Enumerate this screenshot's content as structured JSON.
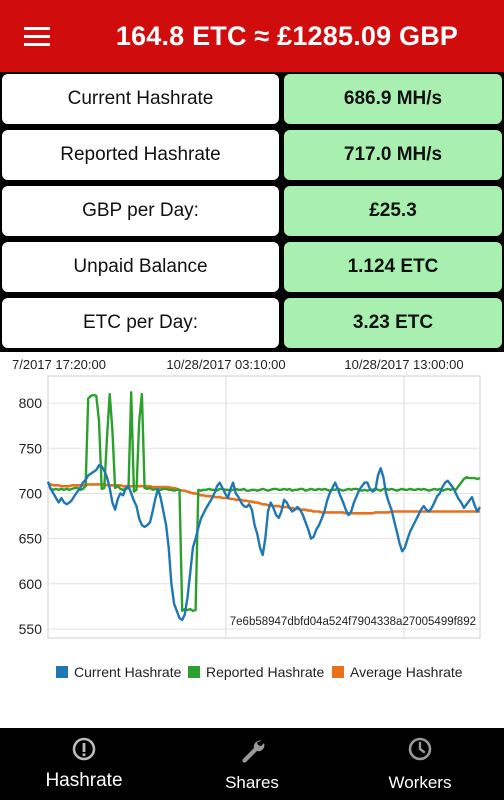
{
  "header": {
    "title": "164.8 ETC ≈ £1285.09 GBP"
  },
  "stats": [
    {
      "label": "Current Hashrate",
      "value": "686.9 MH/s"
    },
    {
      "label": "Reported Hashrate",
      "value": "717.0 MH/s"
    },
    {
      "label": "GBP per Day:",
      "value": "£25.3"
    },
    {
      "label": "Unpaid Balance",
      "value": "1.124 ETC"
    },
    {
      "label": "ETC per Day:",
      "value": "3.23 ETC"
    }
  ],
  "chart_data": {
    "type": "line",
    "x_tick_labels": [
      "7/2017 17:20:00",
      "10/28/2017 03:10:00",
      "10/28/2017 13:00:00"
    ],
    "ylim": [
      540,
      830
    ],
    "y_ticks": [
      550,
      600,
      650,
      700,
      750,
      800
    ],
    "grid": true,
    "legend_position": "bottom",
    "description_text": "7e6b58947dbfd04a524f7904338a27005499f892",
    "series": [
      {
        "name": "Current Hashrate",
        "color": "#1f77b4",
        "values": [
          713,
          705,
          700,
          695,
          690,
          695,
          690,
          688,
          690,
          693,
          698,
          702,
          706,
          712,
          715,
          720,
          722,
          724,
          726,
          731,
          730,
          725,
          718,
          706,
          690,
          682,
          694,
          700,
          698,
          706,
          708,
          700,
          692,
          686,
          672,
          665,
          663,
          665,
          668,
          680,
          694,
          705,
          695,
          680,
          665,
          640,
          600,
          578,
          570,
          562,
          560,
          566,
          585,
          612,
          640,
          650,
          662,
          672,
          678,
          684,
          689,
          694,
          700,
          708,
          712,
          706,
          700,
          695,
          705,
          712,
          700,
          696,
          690,
          686,
          685,
          688,
          682,
          665,
          655,
          640,
          632,
          650,
          680,
          690,
          684,
          676,
          673,
          680,
          693,
          690,
          684,
          680,
          682,
          685,
          682,
          676,
          668,
          660,
          650,
          652,
          660,
          665,
          672,
          680,
          692,
          700,
          706,
          712,
          705,
          697,
          690,
          682,
          676,
          680,
          690,
          697,
          704,
          708,
          712,
          712,
          705,
          702,
          704,
          720,
          728,
          718,
          700,
          690,
          682,
          670,
          658,
          645,
          636,
          640,
          650,
          658,
          664,
          670,
          676,
          682,
          686,
          682,
          680,
          684,
          690,
          697,
          700,
          707,
          712,
          714,
          710,
          706,
          700,
          694,
          690,
          684,
          688,
          692,
          696,
          687,
          680,
          685
        ]
      },
      {
        "name": "Reported Hashrate",
        "color": "#2ca02c",
        "values": [
          713,
          705,
          704,
          705,
          704,
          705,
          704,
          705,
          704,
          705,
          706,
          706,
          704,
          705,
          708,
          805,
          808,
          809,
          808,
          780,
          705,
          706,
          762,
          810,
          770,
          706,
          708,
          705,
          704,
          705,
          706,
          812,
          702,
          704,
          780,
          810,
          706,
          705,
          706,
          704,
          705,
          704,
          704,
          705,
          705,
          704,
          704,
          703,
          704,
          704,
          570,
          572,
          571,
          572,
          570,
          571,
          704,
          703,
          704,
          704,
          705,
          704,
          704,
          703,
          705,
          705,
          704,
          704,
          703,
          704,
          705,
          704,
          704,
          705,
          703,
          703,
          704,
          704,
          703,
          704,
          705,
          704,
          703,
          704,
          705,
          705,
          704,
          704,
          705,
          704,
          705,
          703,
          704,
          704,
          705,
          705,
          703,
          704,
          705,
          704,
          704,
          705,
          704,
          705,
          704,
          703,
          704,
          704,
          705,
          704,
          703,
          704,
          705,
          704,
          705,
          705,
          704,
          703,
          704,
          703,
          704,
          704,
          705,
          704,
          703,
          705,
          705,
          704,
          705,
          704,
          703,
          704,
          705,
          704,
          704,
          705,
          704,
          704,
          705,
          704,
          705,
          704,
          703,
          704,
          705,
          704,
          705,
          703,
          704,
          705,
          704,
          705,
          704,
          708,
          712,
          716,
          718,
          717,
          717,
          717,
          716,
          717
        ]
      },
      {
        "name": "Average Hashrate",
        "color": "#e8711c",
        "values": [
          710,
          710,
          709,
          709,
          709,
          708,
          708,
          708,
          708,
          709,
          709,
          709,
          709,
          709,
          709,
          710,
          710,
          710,
          710,
          710,
          710,
          710,
          709,
          709,
          709,
          709,
          709,
          709,
          708,
          708,
          708,
          708,
          708,
          708,
          708,
          708,
          708,
          708,
          708,
          707,
          707,
          707,
          707,
          707,
          707,
          707,
          706,
          706,
          705,
          704,
          703,
          703,
          702,
          701,
          700,
          700,
          699,
          698,
          698,
          697,
          697,
          697,
          696,
          696,
          696,
          695,
          695,
          695,
          694,
          694,
          693,
          693,
          693,
          692,
          692,
          691,
          691,
          690,
          690,
          689,
          688,
          688,
          687,
          687,
          686,
          686,
          686,
          685,
          685,
          685,
          684,
          684,
          683,
          683,
          682,
          682,
          682,
          681,
          681,
          680,
          680,
          680,
          679,
          679,
          679,
          679,
          679,
          679,
          679,
          679,
          679,
          678,
          678,
          678,
          678,
          678,
          678,
          678,
          678,
          678,
          678,
          678,
          679,
          679,
          679,
          679,
          679,
          679,
          680,
          680,
          680,
          680,
          680,
          680,
          680,
          680,
          680,
          680,
          680,
          680,
          680,
          680,
          680,
          680,
          680,
          680,
          680,
          680,
          680,
          680,
          680,
          680,
          680,
          680,
          680,
          680,
          680,
          680,
          680,
          680,
          680,
          680
        ]
      }
    ]
  },
  "nav": {
    "items": [
      {
        "label": "Hashrate",
        "icon": "info-icon",
        "active": true
      },
      {
        "label": "Shares",
        "icon": "wrench-icon",
        "active": false
      },
      {
        "label": "Workers",
        "icon": "clock-icon",
        "active": false
      }
    ]
  }
}
